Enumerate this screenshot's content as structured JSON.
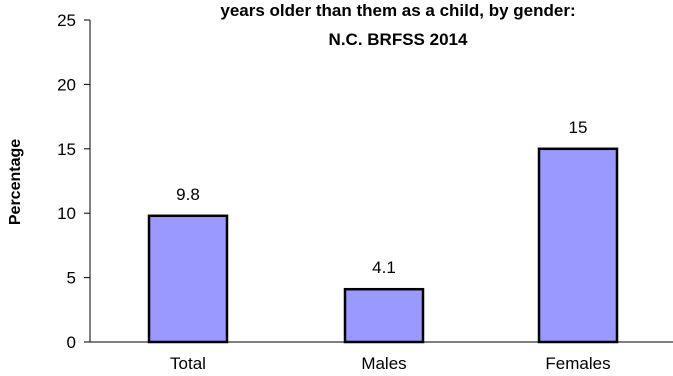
{
  "chart_data": {
    "type": "bar",
    "title_lines": [
      "years older than them as a child, by gender:",
      "N.C. BRFSS 2014"
    ],
    "xlabel": "",
    "ylabel": "Percentage",
    "categories": [
      "Total",
      "Males",
      "Females"
    ],
    "values": [
      9.8,
      4.1,
      15
    ],
    "value_labels": [
      "9.8",
      "4.1",
      "15"
    ],
    "ylim": [
      0,
      25
    ],
    "yticks": [
      0,
      5,
      10,
      15,
      20,
      25
    ],
    "grid": false,
    "legend": "none",
    "colors": {
      "bar_fill": "#9999ff",
      "bar_stroke": "#000000",
      "axis": "#000000"
    }
  }
}
